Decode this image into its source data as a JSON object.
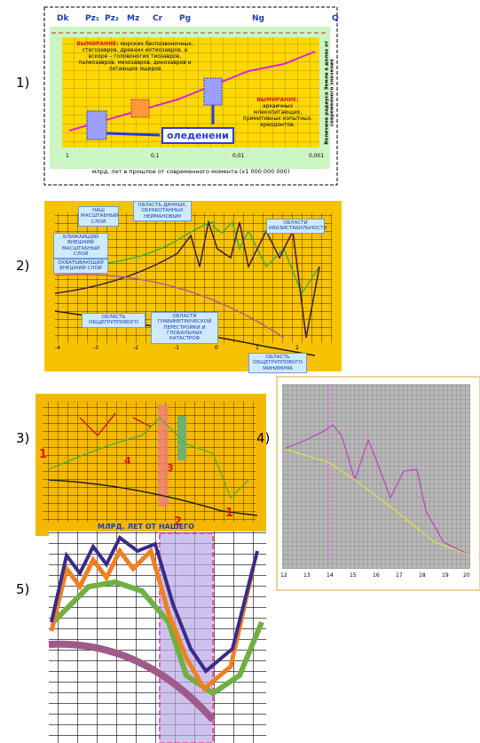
{
  "panel_labels": [
    "1)",
    "2)",
    "3)",
    "4)",
    "5)"
  ],
  "panel1": {
    "eras": [
      "Dk",
      "Pz₁",
      "Pz₂",
      "Mz",
      "Cr",
      "Pg",
      "Ng",
      "Q"
    ],
    "extinction_1": {
      "title": "ВЫМИРАНИЕ:",
      "text": "морских беспозвоночных, стегозавров, древних ихтиозавров, а вскоре – головоногих тиозавров, палеозавров, мезозавров, динозавров и летающих ящеров"
    },
    "extinction_2": {
      "title": "ВЫМИРАНИЕ:",
      "text": "архаичных млекопитающих, примитивных копытных, креодонтов."
    },
    "glaciation": "оледенени",
    "x_axis_title": "млрд. лет в прошлое от современного момента (х1 000 000 000)",
    "y_axis_title": "Величина радиуса Земли в долях от современного значения",
    "x_ticks": [
      "1",
      "0,1",
      "0,01",
      "0,001"
    ]
  },
  "panel2": {
    "labels": [
      "НАШ МАСШТАБНЫЙ СЛОЙ",
      "ОБЛАСТЬ ДАННЫХ, ОБРАБОТАННЫХ НЕЙМАНОВЫМ",
      "ОБЛАСТИ КВАЗИСТАБИЛЬНОСТИ",
      "БЛИЖАЙШИЙ ВНЕШНИЙ МАСШТАБНЫЙ СЛОЙ",
      "ОХВАТЫВАЮЩИЙ ВНЕШНИЙ СЛОЙ",
      "ОБЛАСТЬ ОБЩЕГРУППОВОГО",
      "ОБЛАСТИ ГРАВИМЕТРИЧЕСКОЙ ПЕРЕСТРОЙКИ И ГЛОБАЛЬНЫХ КАТАСТРОФ",
      "ОБЛАСТЬ ОБЩЕГРУППОВОГО МИНИМУМА"
    ],
    "x_ticks": [
      "-4",
      "-3",
      "-2",
      "-1",
      "0",
      "1",
      "2"
    ]
  },
  "panel3": {
    "markers": [
      "1",
      "4",
      "3",
      "2",
      "1"
    ]
  },
  "panel4": {
    "x_ticks": [
      "12",
      "13",
      "14",
      "15",
      "16",
      "17",
      "18",
      "19",
      "20"
    ]
  },
  "panel5": {
    "title": "МЛРД. ЛЕТ ОТ НАШЕГО"
  }
}
